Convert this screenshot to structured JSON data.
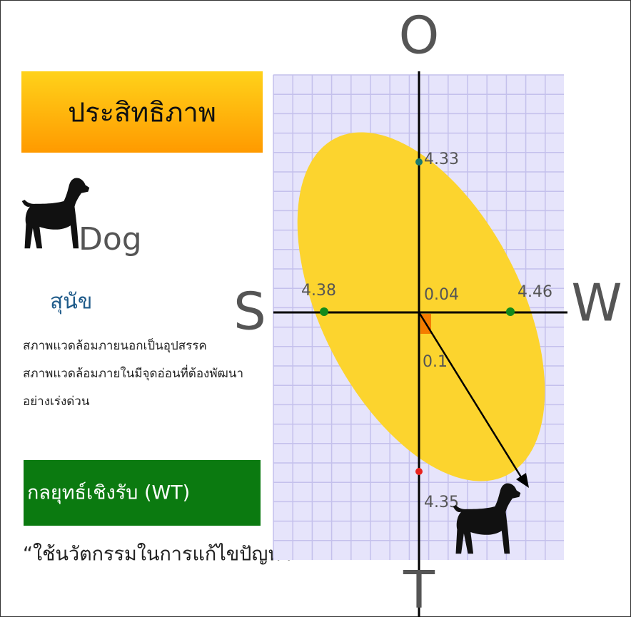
{
  "header": {
    "title": "ประสิทธิภาพ"
  },
  "animal": {
    "name": "Dog",
    "thai_name": "สุนัข",
    "description": [
      "สภาพแวดล้อมภายนอกเป็นอุปสรรค",
      "สภาพแวดล้อมภายในมีจุดอ่อนที่ต้องพัฒนา",
      "อย่างเร่งด่วน"
    ]
  },
  "strategy": {
    "title": "กลยุทธ์เชิงรับ (WT)",
    "quote": "“ใช้นวัตกรรมในการแก้ไขปัญหา”"
  },
  "diagram": {
    "axes": {
      "top": "O",
      "bottom": "T",
      "left": "S",
      "right": "W"
    },
    "values": {
      "top": 4.33,
      "bottom": 4.35,
      "left": 4.38,
      "right": 4.46,
      "x": 0.04,
      "y": 0.1
    }
  }
}
